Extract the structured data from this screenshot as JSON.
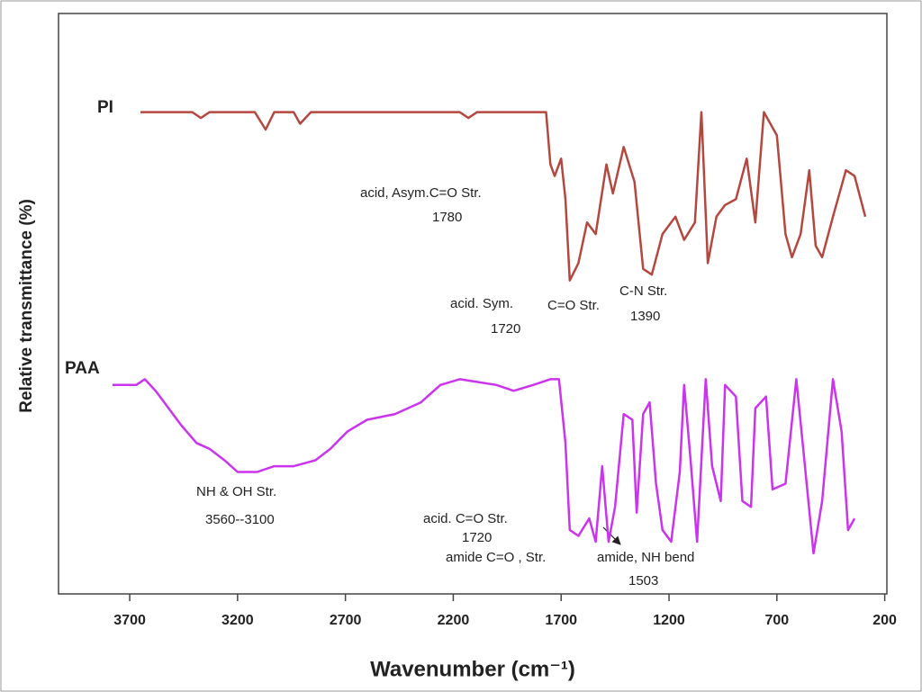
{
  "chart_data": {
    "type": "line",
    "xlabel": "Wavenumber (cm⁻¹)",
    "ylabel": "Relative transmittance (%)",
    "xlim": [
      4030,
      190
    ],
    "ylim": [
      0,
      100
    ],
    "xticks": [
      3700,
      3200,
      2700,
      2200,
      1700,
      1200,
      700,
      200
    ],
    "series": [
      {
        "name": "PI",
        "color": "#b5473f",
        "x": [
          3650,
          3410,
          3370,
          3330,
          3120,
          3070,
          3030,
          2940,
          2910,
          2860,
          2170,
          2130,
          2090,
          1770,
          1750,
          1730,
          1700,
          1680,
          1660,
          1620,
          1580,
          1540,
          1490,
          1460,
          1410,
          1360,
          1320,
          1280,
          1230,
          1210,
          1170,
          1130,
          1080,
          1050,
          1020,
          980,
          940,
          890,
          840,
          800,
          760,
          700,
          660,
          630,
          590,
          550,
          520,
          490,
          440,
          380,
          340,
          290
        ],
        "values": [
          83,
          83,
          82,
          83,
          83,
          80,
          83,
          83,
          81,
          83,
          83,
          82,
          83,
          83,
          74,
          72,
          75,
          68,
          54,
          57,
          64,
          62,
          74,
          69,
          77,
          71,
          56,
          55,
          62,
          63,
          65,
          61,
          64,
          83,
          57,
          65,
          67,
          68,
          75,
          64,
          83,
          79,
          62,
          58,
          62,
          73,
          60,
          58,
          65,
          73,
          72,
          65
        ]
      },
      {
        "name": "PAA",
        "color": "#cc33ee",
        "x": [
          3780,
          3670,
          3630,
          3580,
          3540,
          3500,
          3460,
          3390,
          3330,
          3260,
          3200,
          3110,
          3030,
          2940,
          2840,
          2770,
          2690,
          2600,
          2470,
          2350,
          2260,
          2170,
          2000,
          1920,
          1830,
          1750,
          1710,
          1680,
          1660,
          1620,
          1570,
          1540,
          1510,
          1480,
          1450,
          1410,
          1370,
          1350,
          1320,
          1290,
          1260,
          1230,
          1190,
          1150,
          1130,
          1100,
          1070,
          1050,
          1030,
          1000,
          960,
          940,
          890,
          860,
          820,
          800,
          750,
          720,
          660,
          610,
          570,
          530,
          490,
          440,
          400,
          370,
          340
        ],
        "values": [
          36,
          36,
          37,
          35,
          33,
          31,
          29,
          26,
          25,
          23,
          21,
          21,
          22,
          22,
          23,
          25,
          28,
          30,
          31,
          33,
          36,
          37,
          36,
          35,
          36,
          37,
          37,
          26,
          11,
          10,
          13,
          9,
          22,
          9,
          15,
          31,
          30,
          14,
          31,
          33,
          19,
          11,
          9,
          21,
          36,
          23,
          9,
          23,
          37,
          22,
          16,
          36,
          34,
          16,
          15,
          32,
          34,
          18,
          19,
          37,
          22,
          7,
          16,
          37,
          28,
          11,
          13
        ]
      }
    ],
    "annotations": [
      "acid, Asym.C=O Str.",
      "1780",
      "acid. Sym.",
      "C=O Str.",
      "1720",
      "C-N Str.",
      "1390",
      "NH & OH Str.",
      "3560--3100",
      "acid. C=O Str.",
      "1720",
      "amide C=O , Str.",
      "amide, NH bend",
      "1503"
    ]
  }
}
